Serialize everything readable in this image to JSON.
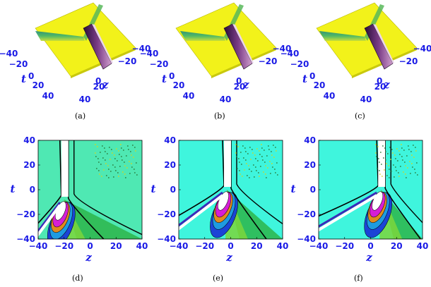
{
  "colors": {
    "plane": "#f2f21a",
    "label": "#1a1ae6",
    "ridge": "#3fa565",
    "wall": "#5a1b66",
    "contour_bg_d": "#4fe8b3",
    "contour_bg_ef": "#3ff5dd",
    "curve": "#000000"
  },
  "chart_data": [
    {
      "type": "surface",
      "panel": "a",
      "caption": "(a)",
      "x_axis": {
        "label": "z",
        "ticks": [
          "−40",
          "−20",
          "0",
          "20",
          "40"
        ]
      },
      "y_axis": {
        "label": "t",
        "ticks": [
          "−40",
          "−20",
          "0",
          "20",
          "40"
        ]
      },
      "xlim": [
        -40,
        40
      ],
      "ylim": [
        -40,
        40
      ]
    },
    {
      "type": "surface",
      "panel": "b",
      "caption": "(b)",
      "x_axis": {
        "label": "z",
        "ticks": [
          "−40",
          "−20",
          "0",
          "20",
          "40"
        ]
      },
      "y_axis": {
        "label": "t",
        "ticks": [
          "−40",
          "−20",
          "0",
          "20",
          "40"
        ]
      },
      "xlim": [
        -40,
        40
      ],
      "ylim": [
        -40,
        40
      ]
    },
    {
      "type": "surface",
      "panel": "c",
      "caption": "(c)",
      "x_axis": {
        "label": "z",
        "ticks": [
          "−40",
          "−20",
          "0",
          "20",
          "40"
        ]
      },
      "y_axis": {
        "label": "t",
        "ticks": [
          "−40",
          "−20",
          "0",
          "20",
          "40"
        ]
      },
      "xlim": [
        -40,
        40
      ],
      "ylim": [
        -40,
        40
      ]
    },
    {
      "type": "contour",
      "panel": "d",
      "caption": "(d)",
      "xlabel": "z",
      "ylabel": "t",
      "xlim": [
        -40,
        40
      ],
      "ylim": [
        -40,
        40
      ],
      "x_ticks": [
        "−40",
        "−20",
        "0",
        "20",
        "40"
      ],
      "y_ticks": [
        "40",
        "20",
        "0",
        "−20",
        "−40"
      ],
      "center": [
        -20,
        -8
      ]
    },
    {
      "type": "contour",
      "panel": "e",
      "caption": "(e)",
      "xlabel": "z",
      "ylabel": "t",
      "xlim": [
        -40,
        40
      ],
      "ylim": [
        -40,
        40
      ],
      "x_ticks": [
        "−40",
        "−20",
        "0",
        "20",
        "40"
      ],
      "y_ticks": [
        "40",
        "20",
        "0",
        "−20",
        "−40"
      ],
      "center": [
        -3,
        0
      ]
    },
    {
      "type": "contour",
      "panel": "f",
      "caption": "(f)",
      "xlabel": "z",
      "ylabel": "t",
      "xlim": [
        -40,
        40
      ],
      "ylim": [
        -40,
        40
      ],
      "x_ticks": [
        "−40",
        "−20",
        "0",
        "20",
        "40"
      ],
      "y_ticks": [
        "40",
        "20",
        "0",
        "−20",
        "−40"
      ],
      "center": [
        8,
        0
      ]
    }
  ]
}
